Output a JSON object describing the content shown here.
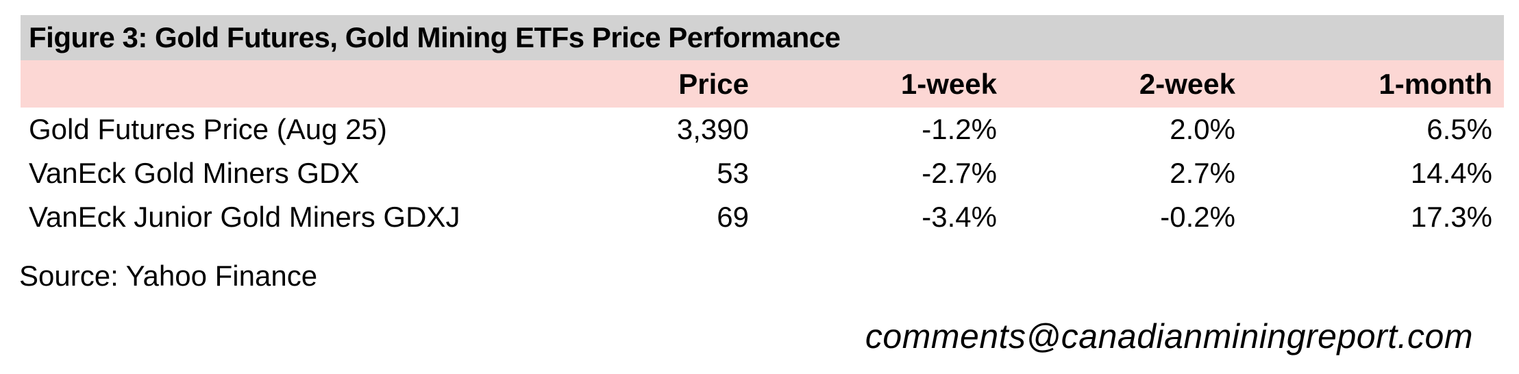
{
  "figure": {
    "title": "Figure 3: Gold Futures, Gold Mining ETFs Price Performance",
    "source": "Source: Yahoo Finance",
    "contact_email": "comments@canadianminingreport.com"
  },
  "table": {
    "columns": [
      "",
      "Price",
      "1-week",
      "2-week",
      "1-month"
    ],
    "rows": [
      {
        "label": "Gold Futures Price (Aug 25)",
        "price": "3,390",
        "week1": "-1.2%",
        "week2": "2.0%",
        "month1": "6.5%"
      },
      {
        "label": "VanEck Gold Miners GDX",
        "price": "53",
        "week1": "-2.7%",
        "week2": "2.7%",
        "month1": "14.4%"
      },
      {
        "label": "VanEck Junior Gold Miners GDXJ",
        "price": "69",
        "week1": "-3.4%",
        "week2": "-0.2%",
        "month1": "17.3%"
      }
    ]
  },
  "chart_data": {
    "type": "table",
    "title": "Figure 3: Gold Futures, Gold Mining ETFs Price Performance",
    "columns": [
      "Price",
      "1-week",
      "2-week",
      "1-month"
    ],
    "series": [
      {
        "name": "Gold Futures Price (Aug 25)",
        "price": 3390,
        "week1_pct": -1.2,
        "week2_pct": 2.0,
        "month1_pct": 6.5
      },
      {
        "name": "VanEck Gold Miners GDX",
        "price": 53,
        "week1_pct": -2.7,
        "week2_pct": 2.7,
        "month1_pct": 14.4
      },
      {
        "name": "VanEck Junior Gold Miners GDXJ",
        "price": 69,
        "week1_pct": -3.4,
        "week2_pct": -0.2,
        "month1_pct": 17.3
      }
    ]
  },
  "colors": {
    "title_band_background": "#d2d2d2",
    "header_band_background": "#fcd7d4",
    "text": "#000000",
    "page_background": "#ffffff"
  }
}
